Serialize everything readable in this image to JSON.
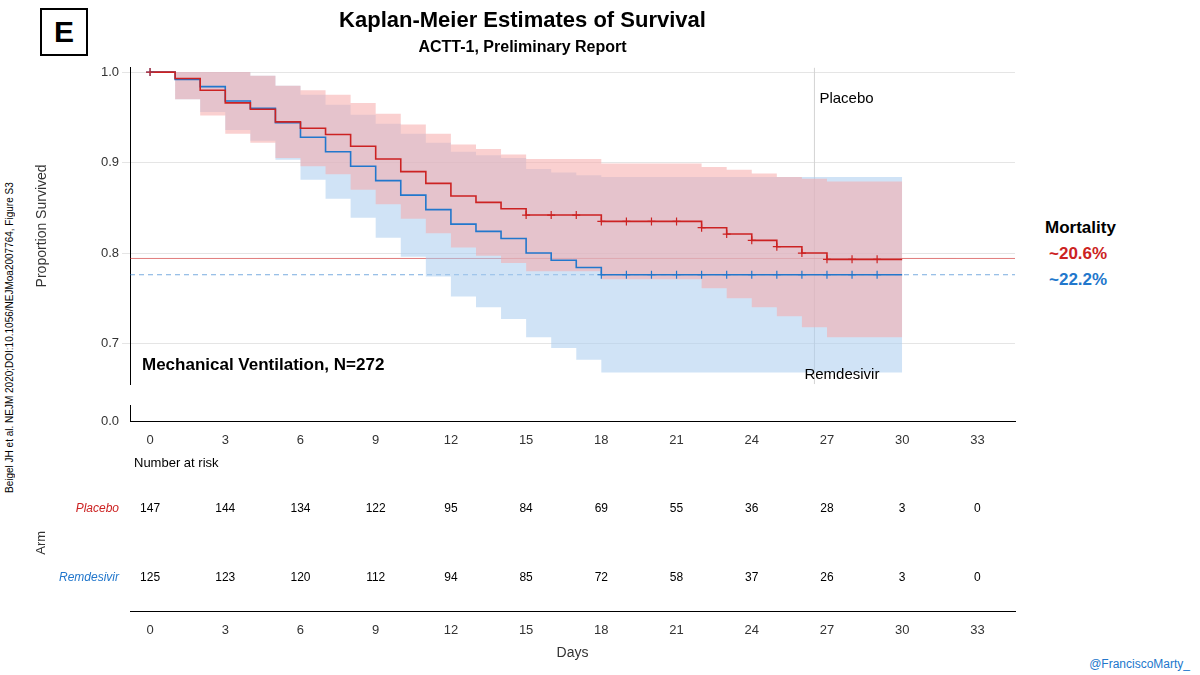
{
  "chart_data": {
    "type": "line",
    "title": "Kaplan-Meier Estimates of Survival",
    "subtitle": "ACTT-1, Preliminary Report",
    "panel_label": "E",
    "xlabel": "Days",
    "ylabel": "Proportion Survived",
    "annotation": "Mechanical Ventilation, N=272",
    "source": "Beigel JH et al. NEJM 2020;DOI:10.1056/NEJMoa2007764, Figure S3",
    "credit": "@FranciscoMarty_",
    "mortality_label": "Mortality",
    "xlim": [
      -0.8,
      34.5
    ],
    "xticks": [
      0,
      3,
      6,
      9,
      12,
      15,
      18,
      21,
      24,
      27,
      30,
      33
    ],
    "ylim": [
      0.655,
      1.005
    ],
    "yticks": [
      0.7,
      0.8,
      0.9,
      {
        "value": 1.0,
        "label": "1.0"
      }
    ],
    "y_break": {
      "ylim": [
        0.0,
        0.05
      ],
      "yticks": [
        {
          "value": 0.0,
          "label": "0.0"
        }
      ]
    },
    "grid": true,
    "series": [
      {
        "name": "Placebo",
        "color": "#CC2222",
        "fill_color": "#F5AAAA",
        "marker": "cross",
        "x": [
          0,
          1,
          2,
          3,
          4,
          5,
          6,
          7,
          8,
          9,
          10,
          11,
          12,
          13,
          14,
          15,
          16,
          17,
          18,
          19,
          20,
          21,
          22,
          23,
          24,
          25,
          26,
          27,
          28,
          29,
          30
        ],
        "values": [
          1.0,
          0.993,
          0.98,
          0.966,
          0.959,
          0.945,
          0.938,
          0.931,
          0.918,
          0.904,
          0.89,
          0.877,
          0.863,
          0.856,
          0.849,
          0.842,
          0.842,
          0.842,
          0.835,
          0.835,
          0.835,
          0.835,
          0.828,
          0.821,
          0.814,
          0.807,
          0.8,
          0.793,
          0.793,
          0.793,
          0.793
        ],
        "lower": [
          1.0,
          0.97,
          0.952,
          0.932,
          0.922,
          0.905,
          0.896,
          0.887,
          0.87,
          0.854,
          0.838,
          0.822,
          0.806,
          0.797,
          0.789,
          0.78,
          0.78,
          0.78,
          0.771,
          0.771,
          0.771,
          0.771,
          0.761,
          0.75,
          0.74,
          0.73,
          0.718,
          0.707,
          0.707,
          0.707,
          0.707
        ],
        "upper": [
          1.0,
          1.0,
          1.0,
          1.0,
          0.996,
          0.985,
          0.98,
          0.975,
          0.966,
          0.954,
          0.942,
          0.932,
          0.92,
          0.915,
          0.909,
          0.904,
          0.904,
          0.904,
          0.899,
          0.899,
          0.899,
          0.899,
          0.895,
          0.892,
          0.888,
          0.884,
          0.882,
          0.879,
          0.879,
          0.879,
          0.879
        ],
        "censor_x": [
          0,
          15,
          16,
          17,
          18,
          19,
          20,
          21,
          22,
          23,
          24,
          25,
          26,
          27,
          28,
          29
        ],
        "censor_values": [
          1.0,
          0.842,
          0.842,
          0.842,
          0.835,
          0.835,
          0.835,
          0.835,
          0.828,
          0.821,
          0.814,
          0.807,
          0.8,
          0.793,
          0.793,
          0.793
        ],
        "mortality": "~20.6%",
        "at_risk": [
          147,
          144,
          134,
          122,
          95,
          84,
          69,
          55,
          36,
          28,
          3,
          0
        ]
      },
      {
        "name": "Remdesivir",
        "color": "#2277CC",
        "fill_color": "#AACCEE",
        "marker": "cross",
        "x": [
          0,
          1,
          2,
          3,
          4,
          5,
          6,
          7,
          8,
          9,
          10,
          11,
          12,
          13,
          14,
          15,
          16,
          17,
          18,
          19,
          20,
          21,
          22,
          23,
          24,
          25,
          26,
          27,
          28,
          29,
          30
        ],
        "values": [
          1.0,
          0.992,
          0.984,
          0.968,
          0.96,
          0.944,
          0.928,
          0.912,
          0.896,
          0.88,
          0.864,
          0.848,
          0.832,
          0.824,
          0.816,
          0.8,
          0.792,
          0.784,
          0.776,
          0.776,
          0.776,
          0.776,
          0.776,
          0.776,
          0.776,
          0.776,
          0.776,
          0.776,
          0.776,
          0.776,
          0.776
        ],
        "lower": [
          1.0,
          0.97,
          0.956,
          0.936,
          0.924,
          0.903,
          0.881,
          0.86,
          0.839,
          0.817,
          0.796,
          0.774,
          0.752,
          0.74,
          0.727,
          0.707,
          0.695,
          0.682,
          0.668,
          0.668,
          0.668,
          0.668,
          0.668,
          0.668,
          0.668,
          0.668,
          0.668,
          0.668,
          0.668,
          0.668,
          0.668
        ],
        "upper": [
          1.0,
          1.0,
          1.0,
          1.0,
          0.996,
          0.985,
          0.975,
          0.964,
          0.953,
          0.943,
          0.932,
          0.922,
          0.912,
          0.908,
          0.905,
          0.893,
          0.889,
          0.886,
          0.884,
          0.884,
          0.884,
          0.884,
          0.884,
          0.884,
          0.884,
          0.884,
          0.884,
          0.884,
          0.884,
          0.884,
          0.884
        ],
        "censor_x": [
          0,
          18,
          19,
          20,
          21,
          22,
          23,
          24,
          25,
          26,
          27,
          28,
          29
        ],
        "censor_values": [
          1.0,
          0.776,
          0.776,
          0.776,
          0.776,
          0.776,
          0.776,
          0.776,
          0.776,
          0.776,
          0.776,
          0.776,
          0.776
        ],
        "mortality": "~22.2%",
        "at_risk": [
          125,
          123,
          120,
          112,
          94,
          85,
          72,
          58,
          37,
          26,
          3,
          0
        ]
      }
    ],
    "reference_lines": [
      {
        "y": 0.794,
        "color": "#CC2222",
        "line_style": "solid"
      },
      {
        "y": 0.776,
        "color": "#2277CC",
        "line_style": "dashed"
      },
      {
        "x": 26.5,
        "color": "lightgray",
        "line_style": "solid"
      }
    ],
    "at_risk": {
      "title": "Number at risk",
      "row_title": "Arm",
      "x": [
        0,
        3,
        6,
        9,
        12,
        15,
        18,
        21,
        24,
        27,
        30,
        33
      ]
    }
  }
}
